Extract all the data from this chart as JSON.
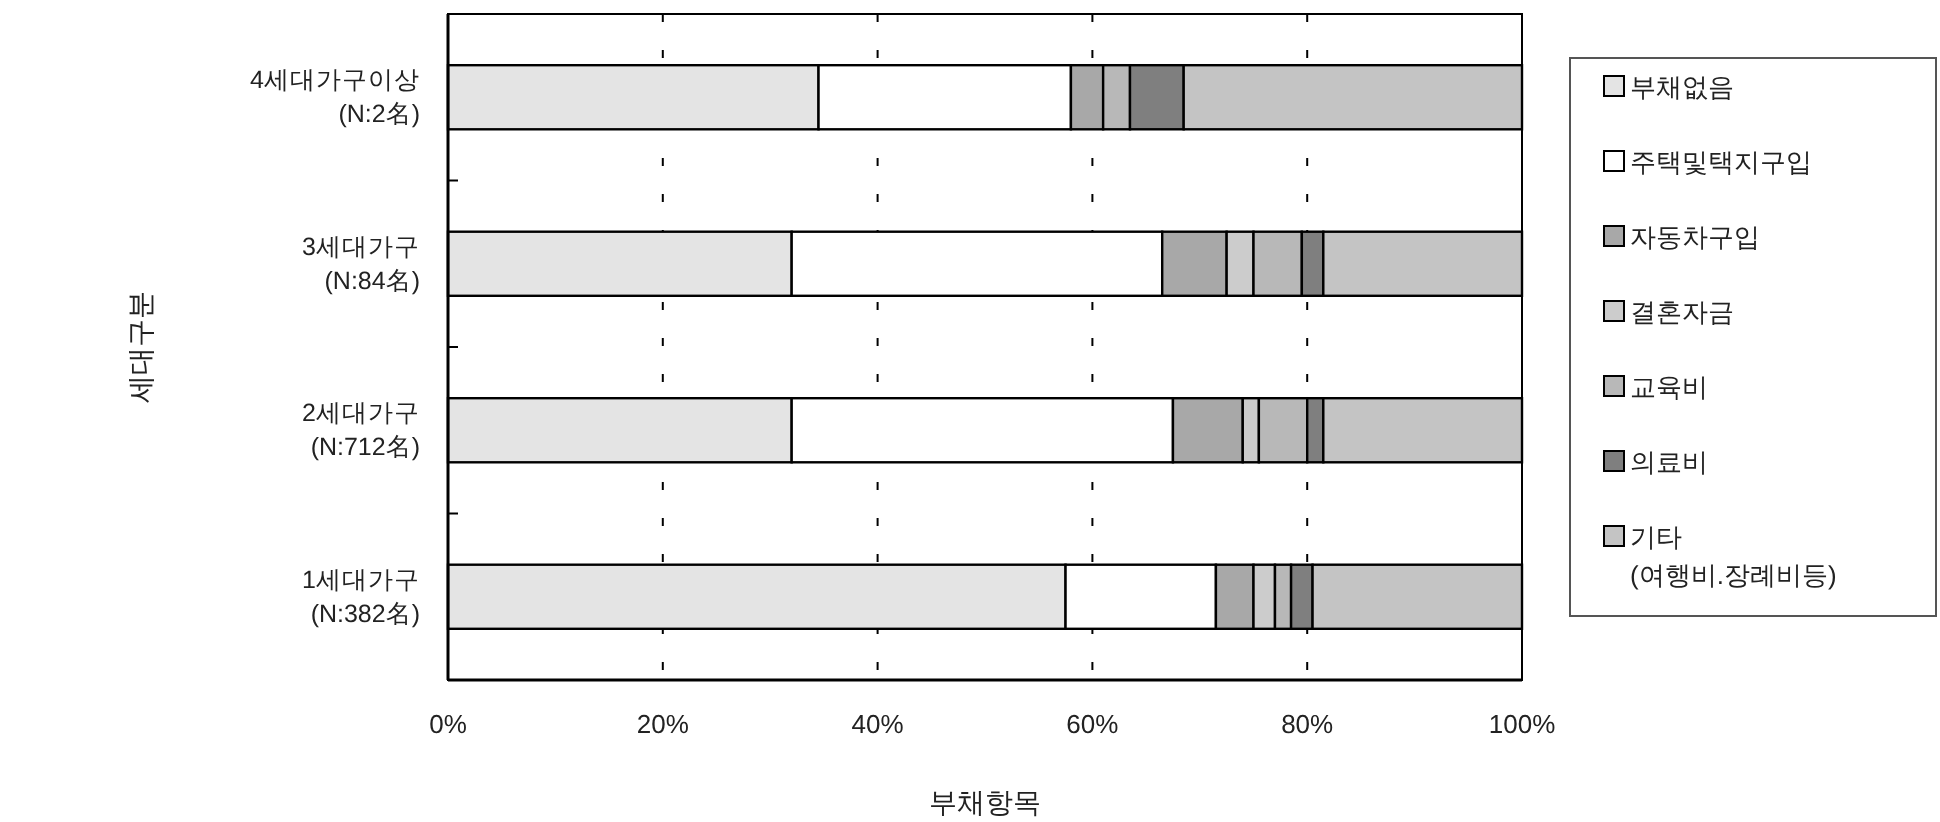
{
  "chart_data": {
    "type": "bar",
    "orientation": "horizontal",
    "stacked": true,
    "categories": [
      "4세대가구이상\n(N:2名)",
      "3세대가구\n(N:84名)",
      "2세대가구\n(N:712名)",
      "1세대가구\n(N:382名)"
    ],
    "series": [
      {
        "name": "부채없음",
        "color": "#e4e4e4",
        "values": [
          34.5,
          32,
          32,
          57.5
        ]
      },
      {
        "name": "주택및택지구입",
        "color": "#ffffff",
        "values": [
          23.5,
          34.5,
          35.5,
          14
        ]
      },
      {
        "name": "자동차구입",
        "color": "#a8a8a8",
        "values": [
          3,
          6,
          6.5,
          3.5
        ]
      },
      {
        "name": "결혼자금",
        "color": "#cccccc",
        "values": [
          0,
          2.5,
          1.5,
          2
        ]
      },
      {
        "name": "교육비",
        "color": "#b8b8b8",
        "values": [
          2.5,
          4.5,
          4.5,
          1.5
        ]
      },
      {
        "name": "의료비",
        "color": "#7f7f7f",
        "values": [
          5,
          2,
          1.5,
          2
        ]
      },
      {
        "name": "기타\n(여행비.장례비등)",
        "color": "#c4c4c4",
        "values": [
          31.5,
          18.5,
          18.5,
          19.5
        ]
      }
    ],
    "xlim": [
      0,
      100
    ],
    "xticks": [
      {
        "value": 0,
        "label": "0%"
      },
      {
        "value": 20,
        "label": "20%"
      },
      {
        "value": 40,
        "label": "40%"
      },
      {
        "value": 60,
        "label": "60%"
      },
      {
        "value": 80,
        "label": "80%"
      },
      {
        "value": 100,
        "label": "100%"
      }
    ],
    "xlabel": "부채항목",
    "ylabel": "세대구분",
    "grid": "x",
    "legend": "right"
  }
}
